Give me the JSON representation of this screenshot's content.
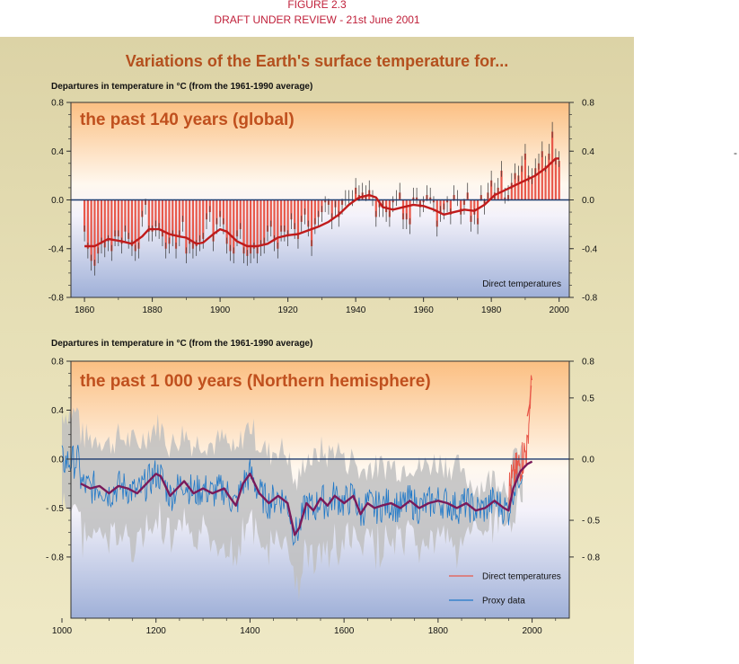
{
  "header": {
    "figure_label": "FIGURE 2.3",
    "draft_label": "DRAFT UNDER REVIEW - 21st June 2001",
    "main_title": "Variations of the Earth's surface temperature for...",
    "edge_mark": "-"
  },
  "colors": {
    "annual_bar": "#e8584a",
    "smooth_line": "#c01b1b",
    "smooth_line_nh": "#7a1a5a",
    "proxy_line": "#1f78c8",
    "uncertainty": "#bfbfbf",
    "zero_line": "#1c3a6e",
    "panel_title": "#c0501e"
  },
  "chart_data": [
    {
      "type": "bar",
      "title": "the past 140 years (global)",
      "ylabel": "Departures in temperature in °C (from the 1961-1990 average)",
      "xlim": [
        1856,
        2003
      ],
      "ylim": [
        -0.8,
        0.8
      ],
      "x_ticks": [
        "1860",
        "1880",
        "1900",
        "1920",
        "1940",
        "1960",
        "1980",
        "2000"
      ],
      "y_ticks_left": [
        "0.8",
        "0.4",
        "0.0",
        "-0.4",
        "-0.8"
      ],
      "y_ticks_right": [
        "0.8",
        "0.4",
        "0.0",
        "-0.4",
        "-0.8"
      ],
      "annotation": "Direct temperatures",
      "annual_start_year": 1860,
      "annual_values": [
        -0.26,
        -0.4,
        -0.5,
        -0.54,
        -0.44,
        -0.36,
        -0.39,
        -0.34,
        -0.42,
        -0.3,
        -0.3,
        -0.36,
        -0.26,
        -0.32,
        -0.38,
        -0.42,
        -0.4,
        -0.14,
        -0.04,
        -0.26,
        -0.26,
        -0.22,
        -0.24,
        -0.3,
        -0.4,
        -0.36,
        -0.3,
        -0.4,
        -0.3,
        -0.18,
        -0.44,
        -0.36,
        -0.4,
        -0.38,
        -0.34,
        -0.32,
        -0.16,
        -0.1,
        -0.34,
        -0.2,
        -0.14,
        -0.2,
        -0.36,
        -0.42,
        -0.44,
        -0.3,
        -0.24,
        -0.44,
        -0.46,
        -0.44,
        -0.4,
        -0.44,
        -0.38,
        -0.36,
        -0.26,
        -0.22,
        -0.34,
        -0.4,
        -0.26,
        -0.26,
        -0.3,
        -0.16,
        -0.24,
        -0.32,
        -0.18,
        -0.12,
        -0.22,
        -0.38,
        -0.2,
        -0.14,
        -0.1,
        -0.02,
        -0.04,
        -0.16,
        -0.06,
        -0.14,
        -0.04,
        0.0,
        0.0,
        0.0,
        0.1,
        0.04,
        0.06,
        0.04,
        0.08,
        0.0,
        -0.14,
        -0.06,
        -0.06,
        -0.1,
        -0.14,
        -0.02,
        0.0,
        0.06,
        -0.16,
        -0.16,
        -0.2,
        0.02,
        0.02,
        -0.06,
        -0.02,
        0.04,
        0.02,
        -0.02,
        -0.22,
        -0.1,
        -0.08,
        -0.02,
        -0.12,
        0.04,
        0.0,
        -0.12,
        -0.04,
        0.06,
        -0.18,
        -0.12,
        -0.2,
        0.04,
        -0.04,
        0.06,
        0.16,
        0.06,
        0.1,
        0.24,
        0.02,
        0.04,
        0.14,
        0.22,
        0.2,
        0.28,
        0.38,
        0.2,
        0.18,
        0.26,
        0.3,
        0.4,
        0.28,
        0.38,
        0.56,
        0.34,
        0.32
      ],
      "smoothed": [
        [
          1860,
          -0.38
        ],
        [
          1863,
          -0.38
        ],
        [
          1867,
          -0.32
        ],
        [
          1871,
          -0.34
        ],
        [
          1874,
          -0.36
        ],
        [
          1877,
          -0.3
        ],
        [
          1879,
          -0.24
        ],
        [
          1882,
          -0.24
        ],
        [
          1885,
          -0.28
        ],
        [
          1888,
          -0.3
        ],
        [
          1890,
          -0.31
        ],
        [
          1893,
          -0.36
        ],
        [
          1895,
          -0.35
        ],
        [
          1898,
          -0.28
        ],
        [
          1900,
          -0.24
        ],
        [
          1902,
          -0.26
        ],
        [
          1905,
          -0.34
        ],
        [
          1908,
          -0.38
        ],
        [
          1911,
          -0.38
        ],
        [
          1914,
          -0.36
        ],
        [
          1917,
          -0.31
        ],
        [
          1920,
          -0.29
        ],
        [
          1923,
          -0.28
        ],
        [
          1926,
          -0.25
        ],
        [
          1929,
          -0.22
        ],
        [
          1932,
          -0.18
        ],
        [
          1935,
          -0.12
        ],
        [
          1938,
          -0.04
        ],
        [
          1941,
          0.02
        ],
        [
          1944,
          0.04
        ],
        [
          1946,
          0.02
        ],
        [
          1948,
          -0.06
        ],
        [
          1951,
          -0.08
        ],
        [
          1954,
          -0.06
        ],
        [
          1957,
          -0.04
        ],
        [
          1960,
          -0.05
        ],
        [
          1963,
          -0.08
        ],
        [
          1966,
          -0.12
        ],
        [
          1969,
          -0.1
        ],
        [
          1972,
          -0.08
        ],
        [
          1975,
          -0.09
        ],
        [
          1978,
          -0.04
        ],
        [
          1981,
          0.04
        ],
        [
          1984,
          0.08
        ],
        [
          1987,
          0.12
        ],
        [
          1990,
          0.16
        ],
        [
          1993,
          0.2
        ],
        [
          1996,
          0.26
        ],
        [
          1999,
          0.34
        ],
        [
          2000,
          0.34
        ]
      ]
    },
    {
      "type": "line",
      "title": "the past 1 000 years (Northern hemisphere)",
      "ylabel": "Departures in temperature in °C (from the 1961-1990 average)",
      "xlim": [
        1000,
        2060
      ],
      "ylim": [
        -1.3,
        0.8
      ],
      "x_ticks": [
        "1000",
        "1200",
        "1400",
        "1600",
        "1800",
        "2000"
      ],
      "y_ticks_left": [
        "0.8",
        "0.4",
        "0.0",
        "- 0.5",
        "- 0.8"
      ],
      "y_ticks_right": [
        "0.8",
        "0.5",
        "0.0",
        "- 0.5",
        "- 0.8"
      ],
      "legend": [
        {
          "label": "Direct temperatures",
          "color_key": "annual_bar"
        },
        {
          "label": "Proxy data",
          "color_key": "proxy_line"
        }
      ],
      "legend_placement": "bottom-right",
      "proxy_smoothed": [
        [
          1040,
          -0.2
        ],
        [
          1060,
          -0.24
        ],
        [
          1080,
          -0.22
        ],
        [
          1100,
          -0.28
        ],
        [
          1120,
          -0.22
        ],
        [
          1140,
          -0.24
        ],
        [
          1160,
          -0.28
        ],
        [
          1180,
          -0.2
        ],
        [
          1200,
          -0.12
        ],
        [
          1210,
          -0.14
        ],
        [
          1230,
          -0.3
        ],
        [
          1245,
          -0.24
        ],
        [
          1260,
          -0.18
        ],
        [
          1280,
          -0.28
        ],
        [
          1300,
          -0.24
        ],
        [
          1320,
          -0.28
        ],
        [
          1345,
          -0.24
        ],
        [
          1355,
          -0.3
        ],
        [
          1370,
          -0.38
        ],
        [
          1385,
          -0.2
        ],
        [
          1400,
          -0.12
        ],
        [
          1420,
          -0.28
        ],
        [
          1440,
          -0.36
        ],
        [
          1460,
          -0.3
        ],
        [
          1480,
          -0.36
        ],
        [
          1495,
          -0.62
        ],
        [
          1505,
          -0.56
        ],
        [
          1520,
          -0.36
        ],
        [
          1535,
          -0.42
        ],
        [
          1550,
          -0.32
        ],
        [
          1565,
          -0.38
        ],
        [
          1580,
          -0.3
        ],
        [
          1600,
          -0.36
        ],
        [
          1620,
          -0.3
        ],
        [
          1635,
          -0.45
        ],
        [
          1650,
          -0.36
        ],
        [
          1665,
          -0.4
        ],
        [
          1680,
          -0.38
        ],
        [
          1700,
          -0.36
        ],
        [
          1720,
          -0.4
        ],
        [
          1740,
          -0.34
        ],
        [
          1760,
          -0.4
        ],
        [
          1780,
          -0.36
        ],
        [
          1800,
          -0.34
        ],
        [
          1820,
          -0.36
        ],
        [
          1840,
          -0.4
        ],
        [
          1860,
          -0.36
        ],
        [
          1880,
          -0.42
        ],
        [
          1900,
          -0.4
        ],
        [
          1920,
          -0.34
        ],
        [
          1940,
          -0.4
        ],
        [
          1950,
          -0.42
        ],
        [
          1960,
          -0.24
        ],
        [
          1975,
          -0.1
        ],
        [
          1990,
          -0.04
        ],
        [
          2000,
          -0.02
        ]
      ],
      "instrumental_peak": [
        [
          1990,
          0.35
        ],
        [
          1995,
          0.45
        ],
        [
          1998,
          0.6
        ]
      ],
      "uncertainty_half_width": 0.4
    }
  ]
}
